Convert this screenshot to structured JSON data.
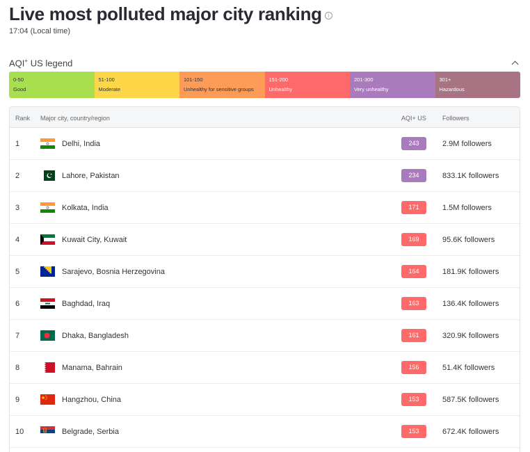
{
  "title": "Live most polluted major city ranking",
  "time": "17:04 (Local time)",
  "legend": {
    "title": "AQI",
    "title_sup": "+",
    "title_suffix": " US legend",
    "segments": [
      {
        "range": "0-50",
        "label": "Good",
        "color": "#a8df4f"
      },
      {
        "range": "51-100",
        "label": "Moderate",
        "color": "#fdd748"
      },
      {
        "range": "101-150",
        "label": "Unhealthy for sensitive groups",
        "color": "#fe9b57"
      },
      {
        "range": "151-200",
        "label": "Unhealthy",
        "color": "#fe6a69"
      },
      {
        "range": "201-300",
        "label": "Very unhealthy",
        "color": "#a97abc"
      },
      {
        "range": "301+",
        "label": "Hazardous",
        "color": "#a87383"
      }
    ]
  },
  "table": {
    "headers": {
      "rank": "Rank",
      "city": "Major city, country/region",
      "aqi": "AQI+ US",
      "followers": "Followers"
    },
    "rows": [
      {
        "rank": "1",
        "city": "Delhi, India",
        "flag": "india-flag-icon",
        "aqi": "243",
        "color": "#a97abc",
        "followers": "2.9M followers"
      },
      {
        "rank": "2",
        "city": "Lahore, Pakistan",
        "flag": "pakistan-flag-icon",
        "aqi": "234",
        "color": "#a97abc",
        "followers": "833.1K followers"
      },
      {
        "rank": "3",
        "city": "Kolkata, India",
        "flag": "india-flag-icon",
        "aqi": "171",
        "color": "#fe6a69",
        "followers": "1.5M followers"
      },
      {
        "rank": "4",
        "city": "Kuwait City, Kuwait",
        "flag": "kuwait-flag-icon",
        "aqi": "169",
        "color": "#fe6a69",
        "followers": "95.6K followers"
      },
      {
        "rank": "5",
        "city": "Sarajevo, Bosnia Herzegovina",
        "flag": "bosnia-flag-icon",
        "aqi": "164",
        "color": "#fe6a69",
        "followers": "181.9K followers"
      },
      {
        "rank": "6",
        "city": "Baghdad, Iraq",
        "flag": "iraq-flag-icon",
        "aqi": "163",
        "color": "#fe6a69",
        "followers": "136.4K followers"
      },
      {
        "rank": "7",
        "city": "Dhaka, Bangladesh",
        "flag": "bangladesh-flag-icon",
        "aqi": "161",
        "color": "#fe6a69",
        "followers": "320.9K followers"
      },
      {
        "rank": "8",
        "city": "Manama, Bahrain",
        "flag": "bahrain-flag-icon",
        "aqi": "156",
        "color": "#fe6a69",
        "followers": "51.4K followers"
      },
      {
        "rank": "9",
        "city": "Hangzhou, China",
        "flag": "china-flag-icon",
        "aqi": "153",
        "color": "#fe6a69",
        "followers": "587.5K followers"
      },
      {
        "rank": "10",
        "city": "Belgrade, Serbia",
        "flag": "serbia-flag-icon",
        "aqi": "153",
        "color": "#fe6a69",
        "followers": "672.4K followers"
      }
    ]
  }
}
